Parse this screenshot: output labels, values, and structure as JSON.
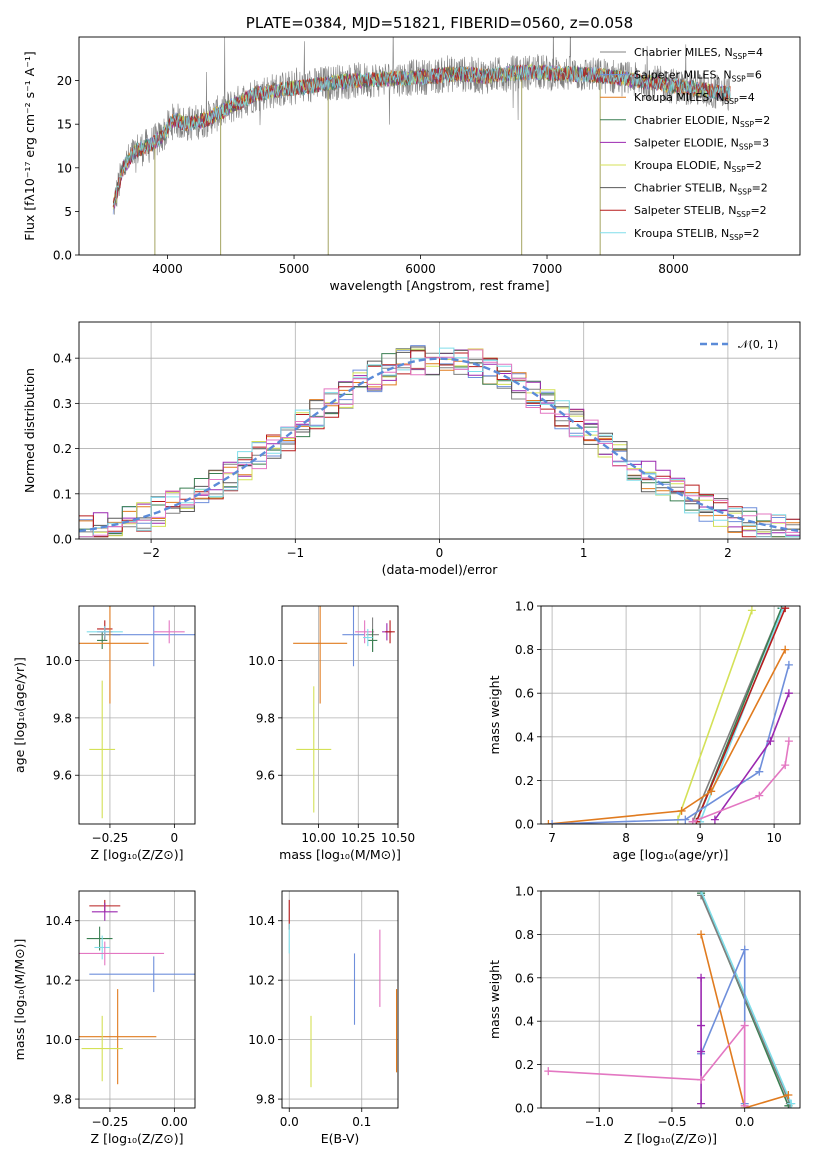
{
  "chart_data": [
    {
      "id": "spectrum",
      "type": "line",
      "title": "PLATE=0384, MJD=51821, FIBERID=0560, z=0.058",
      "xlabel": "wavelength [Angstrom, rest frame]",
      "ylabel": "Flux [fλ10⁻¹⁷ erg cm⁻² s⁻¹ A⁻¹]",
      "xlim": [
        3300,
        9000
      ],
      "ylim": [
        0,
        25
      ],
      "xticks": [
        4000,
        5000,
        6000,
        7000,
        8000
      ],
      "yticks": [
        0,
        5,
        10,
        15,
        20
      ],
      "grid": false,
      "legend_position": "right",
      "data_color": "#808080",
      "model_color": "#7fd3dc",
      "continuum_x": [
        3570,
        3650,
        3750,
        3850,
        3950,
        4050,
        4150,
        4300,
        4500,
        4700,
        4900,
        5100,
        5300,
        5500,
        5700,
        5900,
        6100,
        6300,
        6500,
        6700,
        6900,
        7100,
        7300,
        7500,
        7700,
        7900,
        8100,
        8300,
        8450
      ],
      "continuum_y": [
        5.5,
        10.0,
        12.0,
        12.5,
        13.5,
        15.5,
        15.0,
        15.5,
        17.0,
        18.5,
        19.0,
        19.3,
        19.8,
        20.0,
        20.2,
        20.3,
        20.5,
        20.8,
        20.5,
        20.8,
        21.0,
        20.8,
        20.7,
        20.5,
        20.0,
        19.6,
        19.2,
        18.8,
        18.5
      ],
      "series": [
        {
          "name": "Chabrier MILES, N",
          "sub": "SSP",
          "suffix": "=4",
          "color": "#808080"
        },
        {
          "name": "Salpeter MILES, N",
          "sub": "SSP",
          "suffix": "=6",
          "color": "#6f8fdb"
        },
        {
          "name": "Kroupa MILES, N",
          "sub": "SSP",
          "suffix": "=4",
          "color": "#e07b1f"
        },
        {
          "name": "Chabrier ELODIE, N",
          "sub": "SSP",
          "suffix": "=2",
          "color": "#3a7f52"
        },
        {
          "name": "Salpeter ELODIE, N",
          "sub": "SSP",
          "suffix": "=3",
          "color": "#9b28b0"
        },
        {
          "name": "Kroupa ELODIE, N",
          "sub": "SSP",
          "suffix": "=2",
          "color": "#d4e157"
        },
        {
          "name": "Chabrier STELIB, N",
          "sub": "SSP",
          "suffix": "=2",
          "color": "#5a5a5a"
        },
        {
          "name": "Salpeter STELIB, N",
          "sub": "SSP",
          "suffix": "=2",
          "color": "#b71c1c"
        },
        {
          "name": "Kroupa STELIB, N",
          "sub": "SSP",
          "suffix": "=2",
          "color": "#80deea"
        }
      ]
    },
    {
      "id": "residuals",
      "type": "line",
      "xlabel": "(data-model)/error",
      "ylabel": "Normed distribution",
      "xlim": [
        -2.5,
        2.5
      ],
      "ylim": [
        0,
        0.48
      ],
      "xticks": [
        -2,
        -1,
        0,
        1,
        2
      ],
      "yticks": [
        0.0,
        0.1,
        0.2,
        0.3,
        0.4
      ],
      "grid": true,
      "legend_label": "𝒩(0, 1)",
      "legend_position": "top-right",
      "gauss_color": "#5b8bd8",
      "bin_width": 0.1,
      "series_colors": [
        "#808080",
        "#6f8fdb",
        "#e07b1f",
        "#3a7f52",
        "#9b28b0",
        "#d4e157",
        "#5a5a5a",
        "#b71c1c",
        "#80deea",
        "#e377c2"
      ]
    },
    {
      "id": "age-vs-Z",
      "type": "scatter",
      "xlabel": "Z [log₁₀(Z/Z⊙)]",
      "ylabel": "age  [log₁₀(age/yr)]",
      "xlim": [
        -0.37,
        0.08
      ],
      "ylim": [
        9.43,
        10.19
      ],
      "xticks": [
        -0.25,
        0.0
      ],
      "yticks": [
        9.6,
        9.8,
        10.0
      ],
      "grid": true,
      "points": [
        {
          "x": -0.28,
          "y": 10.07,
          "xerr": 0.02,
          "yerr": 0.03,
          "color": "#3a7f52"
        },
        {
          "x": -0.27,
          "y": 10.09,
          "xerr": 0.06,
          "yerr": 0.02,
          "color": "#808080"
        },
        {
          "x": -0.27,
          "y": 10.1,
          "xerr": 0.03,
          "yerr": 0.02,
          "color": "#9b28b0"
        },
        {
          "x": -0.27,
          "y": 10.11,
          "xerr": 0.03,
          "yerr": 0.03,
          "color": "#b71c1c"
        },
        {
          "x": -0.27,
          "y": 10.1,
          "xerr": 0.07,
          "yerr": 0.02,
          "color": "#80deea"
        },
        {
          "x": -0.25,
          "y": 10.06,
          "xerr": 0.15,
          "yerr": 0.21,
          "color": "#e07b1f"
        },
        {
          "x": -0.08,
          "y": 10.09,
          "xerr": 0.16,
          "yerr": 0.11,
          "color": "#6f8fdb"
        },
        {
          "x": -0.02,
          "y": 10.1,
          "xerr": 0.06,
          "yerr": 0.04,
          "color": "#e377c2"
        },
        {
          "x": -0.28,
          "y": 9.69,
          "xerr": 0.05,
          "yerr": 0.24,
          "color": "#d4e157"
        }
      ]
    },
    {
      "id": "age-vs-mass",
      "type": "scatter",
      "xlabel": "mass [log₁₀(M/M⊙)]",
      "xlim": [
        9.77,
        10.5
      ],
      "ylim": [
        9.43,
        10.19
      ],
      "xticks": [
        10.0,
        10.25,
        10.5
      ],
      "xticklabels": [
        "10.00",
        "10.25",
        "10.50"
      ],
      "yticks": [
        9.6,
        9.8,
        10.0
      ],
      "grid": true,
      "points": [
        {
          "x": 10.01,
          "y": 10.06,
          "xerr": 0.17,
          "yerr": 0.21,
          "color": "#e07b1f"
        },
        {
          "x": 10.22,
          "y": 10.09,
          "xerr": 0.07,
          "yerr": 0.11,
          "color": "#6f8fdb"
        },
        {
          "x": 10.29,
          "y": 10.1,
          "xerr": 0.06,
          "yerr": 0.04,
          "color": "#e377c2"
        },
        {
          "x": 10.34,
          "y": 10.09,
          "xerr": 0.04,
          "yerr": 0.06,
          "color": "#808080"
        },
        {
          "x": 10.34,
          "y": 10.07,
          "xerr": 0.03,
          "yerr": 0.04,
          "color": "#3a7f52"
        },
        {
          "x": 10.43,
          "y": 10.1,
          "xerr": 0.03,
          "yerr": 0.03,
          "color": "#9b28b0"
        },
        {
          "x": 10.45,
          "y": 10.1,
          "xerr": 0.03,
          "yerr": 0.04,
          "color": "#b71c1c"
        },
        {
          "x": 10.31,
          "y": 10.08,
          "xerr": 0.03,
          "yerr": 0.03,
          "color": "#80deea"
        },
        {
          "x": 9.97,
          "y": 9.69,
          "xerr": 0.11,
          "yerr": 0.22,
          "color": "#d4e157"
        }
      ]
    },
    {
      "id": "mass-weight-vs-age",
      "type": "line",
      "xlabel": "age  [log₁₀(age/yr)]",
      "ylabel": "mass weight",
      "xlim": [
        6.85,
        10.35
      ],
      "ylim": [
        0,
        1.0
      ],
      "xticks": [
        7,
        8,
        9,
        10
      ],
      "yticks": [
        0.0,
        0.2,
        0.4,
        0.6,
        0.8,
        1.0
      ],
      "grid": true,
      "series": [
        {
          "color": "#d4e157",
          "x": [
            8.7,
            9.7
          ],
          "y": [
            0.02,
            0.98
          ]
        },
        {
          "color": "#808080",
          "x": [
            8.9,
            10.1
          ],
          "y": [
            0.01,
            0.99
          ]
        },
        {
          "color": "#3a7f52",
          "x": [
            8.95,
            10.1
          ],
          "y": [
            0.01,
            0.99
          ]
        },
        {
          "color": "#80deea",
          "x": [
            9.0,
            10.12
          ],
          "y": [
            0.01,
            0.99
          ]
        },
        {
          "color": "#b71c1c",
          "x": [
            8.95,
            10.15
          ],
          "y": [
            0.01,
            0.99
          ]
        },
        {
          "color": "#e07b1f",
          "x": [
            6.95,
            8.75,
            9.15,
            10.15
          ],
          "y": [
            0.0,
            0.06,
            0.15,
            0.8
          ]
        },
        {
          "color": "#6f8fdb",
          "x": [
            7.0,
            8.8,
            9.8,
            10.2
          ],
          "y": [
            0.0,
            0.02,
            0.24,
            0.73
          ]
        },
        {
          "color": "#9b28b0",
          "x": [
            9.2,
            9.95,
            10.2
          ],
          "y": [
            0.02,
            0.38,
            0.6
          ]
        },
        {
          "color": "#e377c2",
          "x": [
            8.9,
            9.8,
            10.15,
            10.2
          ],
          "y": [
            0.01,
            0.13,
            0.27,
            0.38
          ]
        }
      ]
    },
    {
      "id": "mass-vs-Z",
      "type": "scatter",
      "xlabel": "Z [log₁₀(Z/Z⊙)]",
      "ylabel": "mass [log₁₀(M/M⊙)]",
      "xlim": [
        -0.37,
        0.08
      ],
      "ylim": [
        9.77,
        10.5
      ],
      "xticks": [
        -0.25,
        0.0
      ],
      "xticklabels": [
        "−0.25",
        "0.00"
      ],
      "yticks": [
        9.8,
        10.0,
        10.2,
        10.4
      ],
      "grid": true,
      "points": [
        {
          "x": -0.27,
          "y": 10.45,
          "xerr": 0.06,
          "yerr": 0.02,
          "color": "#b71c1c"
        },
        {
          "x": -0.27,
          "y": 10.43,
          "xerr": 0.05,
          "yerr": 0.03,
          "color": "#9b28b0"
        },
        {
          "x": -0.29,
          "y": 10.34,
          "xerr": 0.05,
          "yerr": 0.04,
          "color": "#3a7f52"
        },
        {
          "x": -0.28,
          "y": 10.31,
          "xerr": 0.03,
          "yerr": 0.04,
          "color": "#80deea"
        },
        {
          "x": -0.27,
          "y": 10.29,
          "xerr": 0.23,
          "yerr": 0.04,
          "color": "#e377c2"
        },
        {
          "x": -0.08,
          "y": 10.22,
          "xerr": 0.25,
          "yerr": 0.06,
          "color": "#6f8fdb"
        },
        {
          "x": -0.22,
          "y": 10.01,
          "xerr": 0.15,
          "yerr": 0.16,
          "color": "#e07b1f"
        },
        {
          "x": -0.28,
          "y": 9.97,
          "xerr": 0.08,
          "yerr": 0.11,
          "color": "#d4e157"
        }
      ]
    },
    {
      "id": "mass-vs-ebv",
      "type": "scatter",
      "xlabel": "E(B-V)",
      "xlim": [
        -0.01,
        0.15
      ],
      "ylim": [
        9.77,
        10.5
      ],
      "xticks": [
        0.0,
        0.1
      ],
      "xticklabels": [
        "0.0",
        "0.1"
      ],
      "yticks": [
        9.8,
        10.0,
        10.2,
        10.4
      ],
      "grid": true,
      "points": [
        {
          "x": 0.0,
          "y": 10.42,
          "xerr": 0.0,
          "yerr": 0.05,
          "color": "#b71c1c"
        },
        {
          "x": 0.0,
          "y": 10.34,
          "xerr": 0.0,
          "yerr": 0.05,
          "color": "#80deea"
        },
        {
          "x": 0.03,
          "y": 9.96,
          "xerr": 0.0,
          "yerr": 0.12,
          "color": "#d4e157"
        },
        {
          "x": 0.09,
          "y": 10.17,
          "xerr": 0.0,
          "yerr": 0.12,
          "color": "#6f8fdb"
        },
        {
          "x": 0.125,
          "y": 10.24,
          "xerr": 0.0,
          "yerr": 0.13,
          "color": "#e377c2"
        },
        {
          "x": 0.148,
          "y": 10.03,
          "xerr": 0.0,
          "yerr": 0.14,
          "color": "#e07b1f"
        }
      ]
    },
    {
      "id": "mass-weight-vs-Z",
      "type": "line",
      "xlabel": "Z [log₁₀(Z/Z⊙)]",
      "ylabel": "mass weight",
      "xlim": [
        -1.4,
        0.38
      ],
      "ylim": [
        0,
        1.0
      ],
      "xticks": [
        -1.0,
        -0.5,
        0.0
      ],
      "xticklabels": [
        "−1.0",
        "−0.5",
        "0.0"
      ],
      "yticks": [
        0.0,
        0.2,
        0.4,
        0.6,
        0.8,
        1.0
      ],
      "grid": true,
      "series": [
        {
          "color": "#3a7f52",
          "x": [
            -0.3,
            0.3
          ],
          "y": [
            0.99,
            0.01
          ]
        },
        {
          "color": "#808080",
          "x": [
            -0.3,
            0.31
          ],
          "y": [
            0.98,
            0.02
          ]
        },
        {
          "color": "#80deea",
          "x": [
            -0.3,
            0.32
          ],
          "y": [
            1.0,
            0.02
          ]
        },
        {
          "color": "#e07b1f",
          "x": [
            -0.3,
            0.0,
            0.3
          ],
          "y": [
            0.8,
            0.0,
            0.06
          ]
        },
        {
          "color": "#6f8fdb",
          "x": [
            -0.3,
            0.0,
            0.0
          ],
          "y": [
            0.25,
            0.73,
            0.02
          ]
        },
        {
          "color": "#9b28b0",
          "x": [
            -0.3,
            -0.3,
            -0.3,
            -0.3
          ],
          "y": [
            0.02,
            0.38,
            0.6,
            0.26
          ]
        },
        {
          "color": "#e377c2",
          "x": [
            -1.35,
            -0.3,
            0.0,
            0.0
          ],
          "y": [
            0.17,
            0.13,
            0.38,
            0.01
          ]
        }
      ]
    }
  ]
}
